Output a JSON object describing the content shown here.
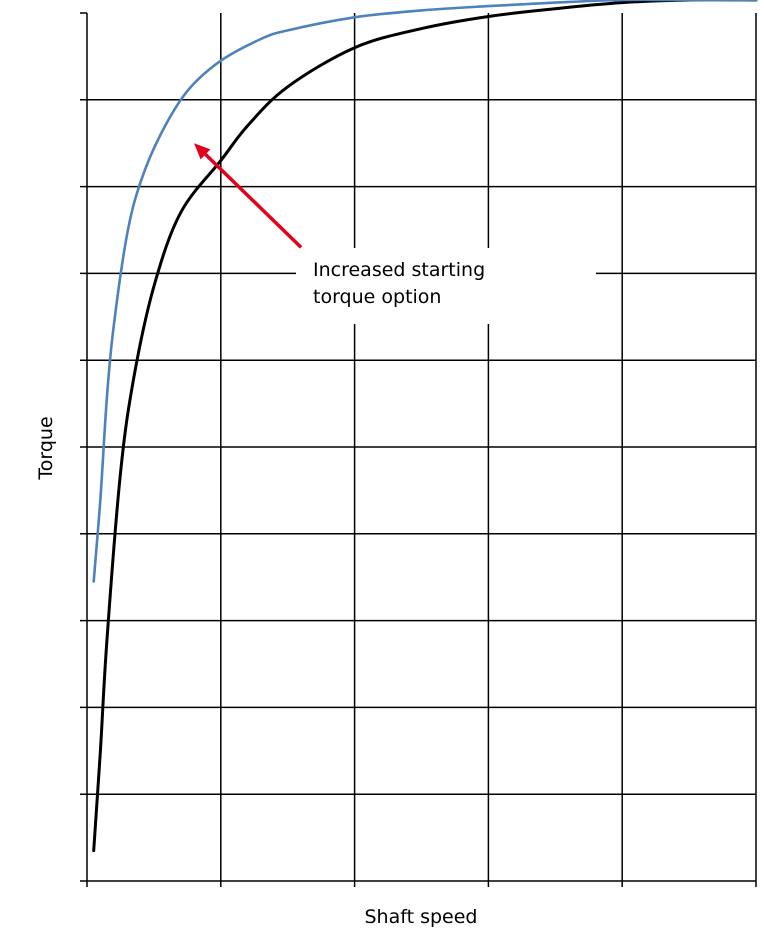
{
  "chart_data": {
    "type": "line",
    "title": "",
    "xlabel": "Shaft speed",
    "ylabel": "Torque",
    "xlim": [
      0,
      5
    ],
    "ylim": [
      0,
      10
    ],
    "x_gridlines": [
      1,
      2,
      3,
      4
    ],
    "y_gridlines": [
      1,
      2,
      3,
      4,
      5,
      6,
      7,
      8,
      9
    ],
    "grid": true,
    "tick_labels_shown": false,
    "legend": "none",
    "series": [
      {
        "color": "#000000",
        "points": [
          [
            0.05,
            0.35
          ],
          [
            0.1,
            1.5
          ],
          [
            0.15,
            2.8
          ],
          [
            0.25,
            4.7
          ],
          [
            0.35,
            5.8
          ],
          [
            0.5,
            6.85
          ],
          [
            0.7,
            7.7
          ],
          [
            1.0,
            8.3
          ],
          [
            1.2,
            8.7
          ],
          [
            1.5,
            9.15
          ],
          [
            2.0,
            9.6
          ],
          [
            2.5,
            9.82
          ],
          [
            3.0,
            9.96
          ],
          [
            3.5,
            10.05
          ],
          [
            4.0,
            10.12
          ],
          [
            4.5,
            10.15
          ],
          [
            5.0,
            10.15
          ]
        ]
      },
      {
        "color": "#4f81bd",
        "points": [
          [
            0.05,
            3.45
          ],
          [
            0.1,
            4.4
          ],
          [
            0.15,
            5.6
          ],
          [
            0.2,
            6.4
          ],
          [
            0.3,
            7.45
          ],
          [
            0.4,
            8.05
          ],
          [
            0.55,
            8.6
          ],
          [
            0.75,
            9.1
          ],
          [
            1.0,
            9.45
          ],
          [
            1.3,
            9.7
          ],
          [
            1.5,
            9.8
          ],
          [
            2.0,
            9.95
          ],
          [
            2.5,
            10.03
          ],
          [
            3.0,
            10.08
          ],
          [
            3.5,
            10.12
          ],
          [
            4.0,
            10.15
          ],
          [
            4.5,
            10.15
          ],
          [
            5.0,
            10.15
          ]
        ]
      }
    ],
    "annotations": [
      {
        "text_lines": [
          "Increased starting",
          "torque option"
        ],
        "arrow_color": "#e2001a",
        "arrow_tail": [
          1.6,
          7.3
        ],
        "arrow_head": [
          0.8,
          8.5
        ]
      }
    ]
  }
}
